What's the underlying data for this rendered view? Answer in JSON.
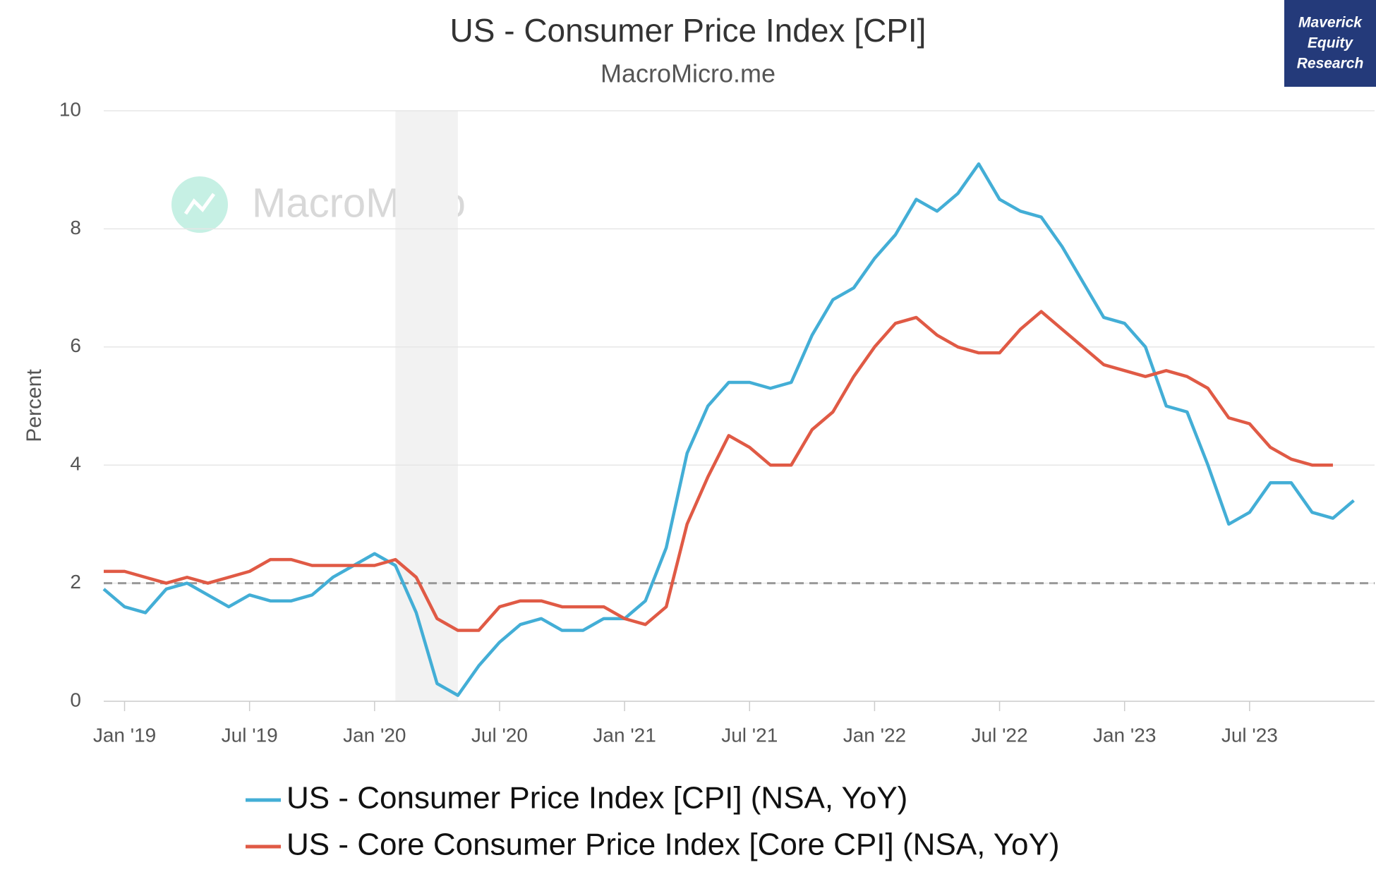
{
  "chart_data": {
    "type": "line",
    "title": "US - Consumer Price Index [CPI]",
    "subtitle": "MacroMicro.me",
    "watermark": "MacroMicro",
    "badge": [
      "Maverick",
      "Equity",
      "Research"
    ],
    "y_label": "Percent",
    "x": [
      "2018-12",
      "2019-01",
      "2019-02",
      "2019-03",
      "2019-04",
      "2019-05",
      "2019-06",
      "2019-07",
      "2019-08",
      "2019-09",
      "2019-10",
      "2019-11",
      "2019-12",
      "2020-01",
      "2020-02",
      "2020-03",
      "2020-04",
      "2020-05",
      "2020-06",
      "2020-07",
      "2020-08",
      "2020-09",
      "2020-10",
      "2020-11",
      "2020-12",
      "2021-01",
      "2021-02",
      "2021-03",
      "2021-04",
      "2021-05",
      "2021-06",
      "2021-07",
      "2021-08",
      "2021-09",
      "2021-10",
      "2021-11",
      "2021-12",
      "2022-01",
      "2022-02",
      "2022-03",
      "2022-04",
      "2022-05",
      "2022-06",
      "2022-07",
      "2022-08",
      "2022-09",
      "2022-10",
      "2022-11",
      "2022-12",
      "2023-01",
      "2023-02",
      "2023-03",
      "2023-04",
      "2023-05",
      "2023-06",
      "2023-07",
      "2023-08",
      "2023-09",
      "2023-10",
      "2023-11",
      "2023-12"
    ],
    "series": [
      {
        "name": "US - Consumer Price Index [CPI] (NSA, YoY)",
        "color": "#43aed6",
        "values": [
          1.9,
          1.6,
          1.5,
          1.9,
          2.0,
          1.8,
          1.6,
          1.8,
          1.7,
          1.7,
          1.8,
          2.1,
          2.3,
          2.5,
          2.3,
          1.5,
          0.3,
          0.1,
          0.6,
          1.0,
          1.3,
          1.4,
          1.2,
          1.2,
          1.4,
          1.4,
          1.7,
          2.6,
          4.2,
          5.0,
          5.4,
          5.4,
          5.3,
          5.4,
          6.2,
          6.8,
          7.0,
          7.5,
          7.9,
          8.5,
          8.3,
          8.6,
          9.1,
          8.5,
          8.3,
          8.2,
          7.7,
          7.1,
          6.5,
          6.4,
          6.0,
          5.0,
          4.9,
          4.0,
          3.0,
          3.2,
          3.7,
          3.7,
          3.2,
          3.1,
          3.4
        ]
      },
      {
        "name": "US - Core Consumer Price Index [Core CPI] (NSA, YoY)",
        "color": "#e05a45",
        "values": [
          2.2,
          2.2,
          2.1,
          2.0,
          2.1,
          2.0,
          2.1,
          2.2,
          2.4,
          2.4,
          2.3,
          2.3,
          2.3,
          2.3,
          2.4,
          2.1,
          1.4,
          1.2,
          1.2,
          1.6,
          1.7,
          1.7,
          1.6,
          1.6,
          1.6,
          1.4,
          1.3,
          1.6,
          3.0,
          3.8,
          4.5,
          4.3,
          4.0,
          4.0,
          4.6,
          4.9,
          5.5,
          6.0,
          6.4,
          6.5,
          6.2,
          6.0,
          5.9,
          5.9,
          6.3,
          6.6,
          6.3,
          6.0,
          5.7,
          5.6,
          5.5,
          5.6,
          5.5,
          5.3,
          4.8,
          4.7,
          4.3,
          4.1,
          4.0,
          4.0,
          null
        ]
      }
    ],
    "xlim": [
      "2018-12",
      "2024-01"
    ],
    "xticks": [
      {
        "value": "2019-01",
        "label": "Jan '19"
      },
      {
        "value": "2019-07",
        "label": "Jul '19"
      },
      {
        "value": "2020-01",
        "label": "Jan '20"
      },
      {
        "value": "2020-07",
        "label": "Jul '20"
      },
      {
        "value": "2021-01",
        "label": "Jan '21"
      },
      {
        "value": "2021-07",
        "label": "Jul '21"
      },
      {
        "value": "2022-01",
        "label": "Jan '22"
      },
      {
        "value": "2022-07",
        "label": "Jul '22"
      },
      {
        "value": "2023-01",
        "label": "Jan '23"
      },
      {
        "value": "2023-07",
        "label": "Jul '23"
      }
    ],
    "ylim": [
      0,
      10
    ],
    "yticks": [
      0,
      2,
      4,
      6,
      8,
      10
    ],
    "grid": true,
    "reference_line": 2,
    "shaded_range": [
      "2020-02",
      "2020-05"
    ]
  }
}
